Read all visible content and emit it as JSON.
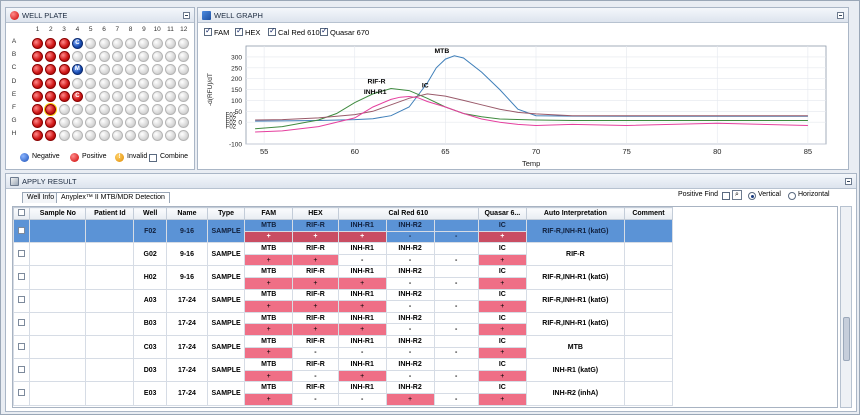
{
  "well_plate": {
    "title": "WELL PLATE",
    "cols": [
      "1",
      "2",
      "3",
      "4",
      "5",
      "6",
      "7",
      "8",
      "9",
      "10",
      "11",
      "12"
    ],
    "rows": [
      "A",
      "B",
      "C",
      "D",
      "E",
      "F",
      "G",
      "H"
    ],
    "red_wells": [
      "A1",
      "A2",
      "A3",
      "B1",
      "B2",
      "B3",
      "C1",
      "C2",
      "C3",
      "D1",
      "D2",
      "D3",
      "E1",
      "E2",
      "E3",
      "F1",
      "F2",
      "G1",
      "G2",
      "H1",
      "H2"
    ],
    "blue_wells": [
      {
        "well": "A4",
        "label": "C"
      },
      {
        "well": "C4",
        "label": "M"
      }
    ],
    "small_red_wells": [
      {
        "well": "E4",
        "label": "C"
      }
    ],
    "selected_well": "F2",
    "legend": {
      "negative": "Negative",
      "positive": "Positive",
      "invalid": "Invalid",
      "combine": "Combine"
    }
  },
  "well_graph": {
    "title": "WELL GRAPH",
    "toggles": [
      "FAM",
      "HEX",
      "Cal Red 610",
      "Quasar 670"
    ]
  },
  "chart_data": {
    "type": "line",
    "xlabel": "Temp",
    "ylabel": "-d(RFU)/dT",
    "xlim": [
      54,
      86
    ],
    "ylim": [
      -100,
      350
    ],
    "xticks": [
      55,
      60,
      65,
      70,
      75,
      80,
      85
    ],
    "yticks": [
      -100,
      0,
      50,
      100,
      150,
      200,
      250,
      300
    ],
    "left_labels": [
      "F02",
      "F02",
      "F02",
      "F02"
    ],
    "annotations": [
      "MTB",
      "RIF-R",
      "IC",
      "INH-R1"
    ],
    "series": [
      {
        "color": "#3f7fb9",
        "x": [
          54.5,
          56,
          58,
          60,
          61,
          62,
          63,
          64,
          64.5,
          65,
          65.5,
          66,
          67,
          68,
          69,
          70,
          72,
          75,
          80,
          85
        ],
        "y": [
          5,
          6,
          8,
          12,
          16,
          30,
          70,
          180,
          250,
          290,
          305,
          295,
          230,
          150,
          60,
          30,
          28,
          27,
          27,
          27
        ]
      },
      {
        "color": "#3f8a3f",
        "x": [
          54.5,
          56,
          58,
          59,
          60,
          61,
          62,
          63,
          64,
          65,
          66,
          67,
          68,
          70,
          72,
          75,
          80,
          85
        ],
        "y": [
          -30,
          -20,
          10,
          40,
          90,
          130,
          155,
          145,
          110,
          70,
          40,
          25,
          15,
          10,
          8,
          8,
          8,
          8
        ]
      },
      {
        "color": "#9a5a6a",
        "x": [
          54.5,
          56,
          58,
          60,
          61,
          62,
          63,
          64,
          65,
          66,
          67,
          68,
          69,
          70,
          72,
          75,
          80,
          85
        ],
        "y": [
          10,
          12,
          20,
          35,
          50,
          80,
          110,
          130,
          120,
          100,
          80,
          60,
          45,
          38,
          30,
          30,
          30,
          30
        ]
      },
      {
        "color": "#e53f9e",
        "x": [
          54.5,
          56,
          58,
          60,
          61,
          62,
          62.5,
          63,
          63.5,
          64,
          65,
          66,
          67,
          68,
          69,
          70,
          72,
          75,
          80,
          85
        ],
        "y": [
          -45,
          -40,
          -20,
          20,
          70,
          105,
          115,
          118,
          112,
          95,
          70,
          40,
          15,
          0,
          -10,
          -15,
          -10,
          -15,
          -5,
          -15
        ]
      }
    ]
  },
  "apply_result": {
    "title": "APPLY RESULT",
    "tabs": [
      "Well Info",
      "Anyplex™ II MTB/MDR Detection"
    ],
    "positive_find": "Positive Find",
    "orientation": {
      "vertical": "Vertical",
      "horizontal": "Horizontal"
    },
    "headers": [
      "Sample No",
      "Patient Id",
      "Well",
      "Name",
      "Type",
      "FAM",
      "HEX",
      "Cal Red 610",
      "Quasar 6...",
      "Auto  Interpretation",
      "Comment"
    ],
    "rows": [
      {
        "well": "F02",
        "name": "9-16",
        "type": "SAMPLE",
        "fam": "MTB",
        "fam_r": "+",
        "hex": "RIF-R",
        "hex_r": "+",
        "cr1": "INH-R1",
        "cr1_r": "+",
        "cr2": "INH-R2",
        "cr2_r": "-",
        "cr3": "",
        "cr3_r": "-",
        "q": "IC",
        "q_r": "+",
        "interp": "RIF-R,INH-R1 (katG)",
        "selected": true
      },
      {
        "well": "G02",
        "name": "9-16",
        "type": "SAMPLE",
        "fam": "MTB",
        "fam_r": "+",
        "hex": "RIF-R",
        "hex_r": "+",
        "cr1": "INH-R1",
        "cr1_r": "-",
        "cr2": "INH-R2",
        "cr2_r": "-",
        "cr3": "",
        "cr3_r": "-",
        "q": "IC",
        "q_r": "+",
        "interp": "RIF-R"
      },
      {
        "well": "H02",
        "name": "9-16",
        "type": "SAMPLE",
        "fam": "MTB",
        "fam_r": "+",
        "hex": "RIF-R",
        "hex_r": "+",
        "cr1": "INH-R1",
        "cr1_r": "+",
        "cr2": "INH-R2",
        "cr2_r": "-",
        "cr3": "",
        "cr3_r": "-",
        "q": "IC",
        "q_r": "+",
        "interp": "RIF-R,INH-R1 (katG)"
      },
      {
        "well": "A03",
        "name": "17-24",
        "type": "SAMPLE",
        "fam": "MTB",
        "fam_r": "+",
        "hex": "RIF-R",
        "hex_r": "+",
        "cr1": "INH-R1",
        "cr1_r": "+",
        "cr2": "INH-R2",
        "cr2_r": "-",
        "cr3": "",
        "cr3_r": "-",
        "q": "IC",
        "q_r": "+",
        "interp": "RIF-R,INH-R1 (katG)"
      },
      {
        "well": "B03",
        "name": "17-24",
        "type": "SAMPLE",
        "fam": "MTB",
        "fam_r": "+",
        "hex": "RIF-R",
        "hex_r": "+",
        "cr1": "INH-R1",
        "cr1_r": "+",
        "cr2": "INH-R2",
        "cr2_r": "-",
        "cr3": "",
        "cr3_r": "-",
        "q": "IC",
        "q_r": "+",
        "interp": "RIF-R,INH-R1 (katG)"
      },
      {
        "well": "C03",
        "name": "17-24",
        "type": "SAMPLE",
        "fam": "MTB",
        "fam_r": "+",
        "hex": "RIF-R",
        "hex_r": "-",
        "cr1": "INH-R1",
        "cr1_r": "-",
        "cr2": "INH-R2",
        "cr2_r": "-",
        "cr3": "",
        "cr3_r": "-",
        "q": "IC",
        "q_r": "+",
        "interp": "MTB"
      },
      {
        "well": "D03",
        "name": "17-24",
        "type": "SAMPLE",
        "fam": "MTB",
        "fam_r": "+",
        "hex": "RIF-R",
        "hex_r": "-",
        "cr1": "INH-R1",
        "cr1_r": "+",
        "cr2": "INH-R2",
        "cr2_r": "-",
        "cr3": "",
        "cr3_r": "-",
        "q": "IC",
        "q_r": "+",
        "interp": "INH-R1 (katG)"
      },
      {
        "well": "E03",
        "name": "17-24",
        "type": "SAMPLE",
        "fam": "MTB",
        "fam_r": "+",
        "hex": "RIF-R",
        "hex_r": "-",
        "cr1": "INH-R1",
        "cr1_r": "-",
        "cr2": "INH-R2",
        "cr2_r": "+",
        "cr3": "",
        "cr3_r": "-",
        "q": "IC",
        "q_r": "+",
        "interp": "INH-R2 (inhA)"
      }
    ]
  }
}
